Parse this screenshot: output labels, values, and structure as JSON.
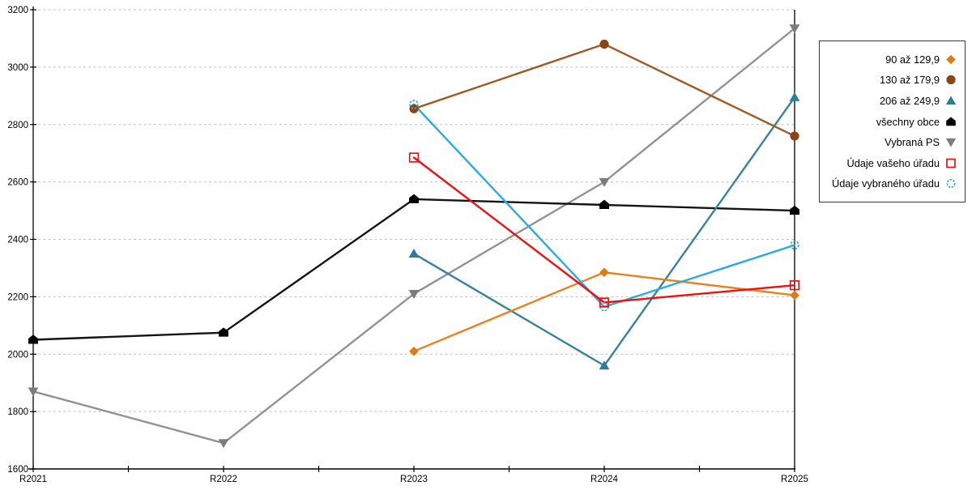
{
  "chart_data": {
    "type": "line",
    "categories": [
      "R2021",
      "R2022",
      "R2023",
      "R2024",
      "R2025"
    ],
    "series": [
      {
        "name": "90 až 129,9",
        "marker": "diamond",
        "color": "#E8821E",
        "marker_color": "#E07B12",
        "values": [
          null,
          null,
          2010,
          2285,
          2205
        ]
      },
      {
        "name": "130 až 179,9",
        "marker": "circle",
        "color": "#A05A20",
        "marker_color": "#8B4513",
        "values": [
          null,
          null,
          2855,
          3080,
          2760
        ]
      },
      {
        "name": "206 až 249,9",
        "marker": "triangle-up",
        "color": "#35839C",
        "marker_color": "#2E7D95",
        "values": [
          null,
          null,
          2350,
          1960,
          2895
        ]
      },
      {
        "name": "všechny obce",
        "marker": "house",
        "color": "#141414",
        "marker_color": "#000000",
        "values": [
          2050,
          2075,
          2540,
          2520,
          2500
        ]
      },
      {
        "name": "Vybraná PS",
        "marker": "triangle-down",
        "color": "#929292",
        "marker_color": "#7C7C7C",
        "values": [
          1870,
          1690,
          2210,
          2600,
          3135
        ]
      },
      {
        "name": "Údaje vašeho úřadu",
        "marker": "square-open",
        "color": "#EE1111",
        "marker_color": "#EE1111",
        "values": [
          null,
          null,
          2685,
          2180,
          2240
        ]
      },
      {
        "name": "Údaje vybraného úřadu",
        "marker": "circle-open",
        "color": "#29ABE2",
        "marker_color": "#29ABE2",
        "values": [
          null,
          null,
          2870,
          2165,
          2380
        ]
      }
    ],
    "title": "",
    "xlabel": "",
    "ylabel": "",
    "ylim": [
      1600,
      3200
    ],
    "ytick_step": 200,
    "y_tick_labels": [
      "1600",
      "1800",
      "2000",
      "2200",
      "2400",
      "2600",
      "2800",
      "3000",
      "3200"
    ],
    "grid": "horizontal-dashed",
    "gridline_color": "#BFBFBF",
    "axis_color": "#000000",
    "legend_position": "right",
    "legend_border_color": "#3a3a3a",
    "draw_order": [
      4,
      3,
      1,
      2,
      0,
      6,
      5
    ]
  }
}
